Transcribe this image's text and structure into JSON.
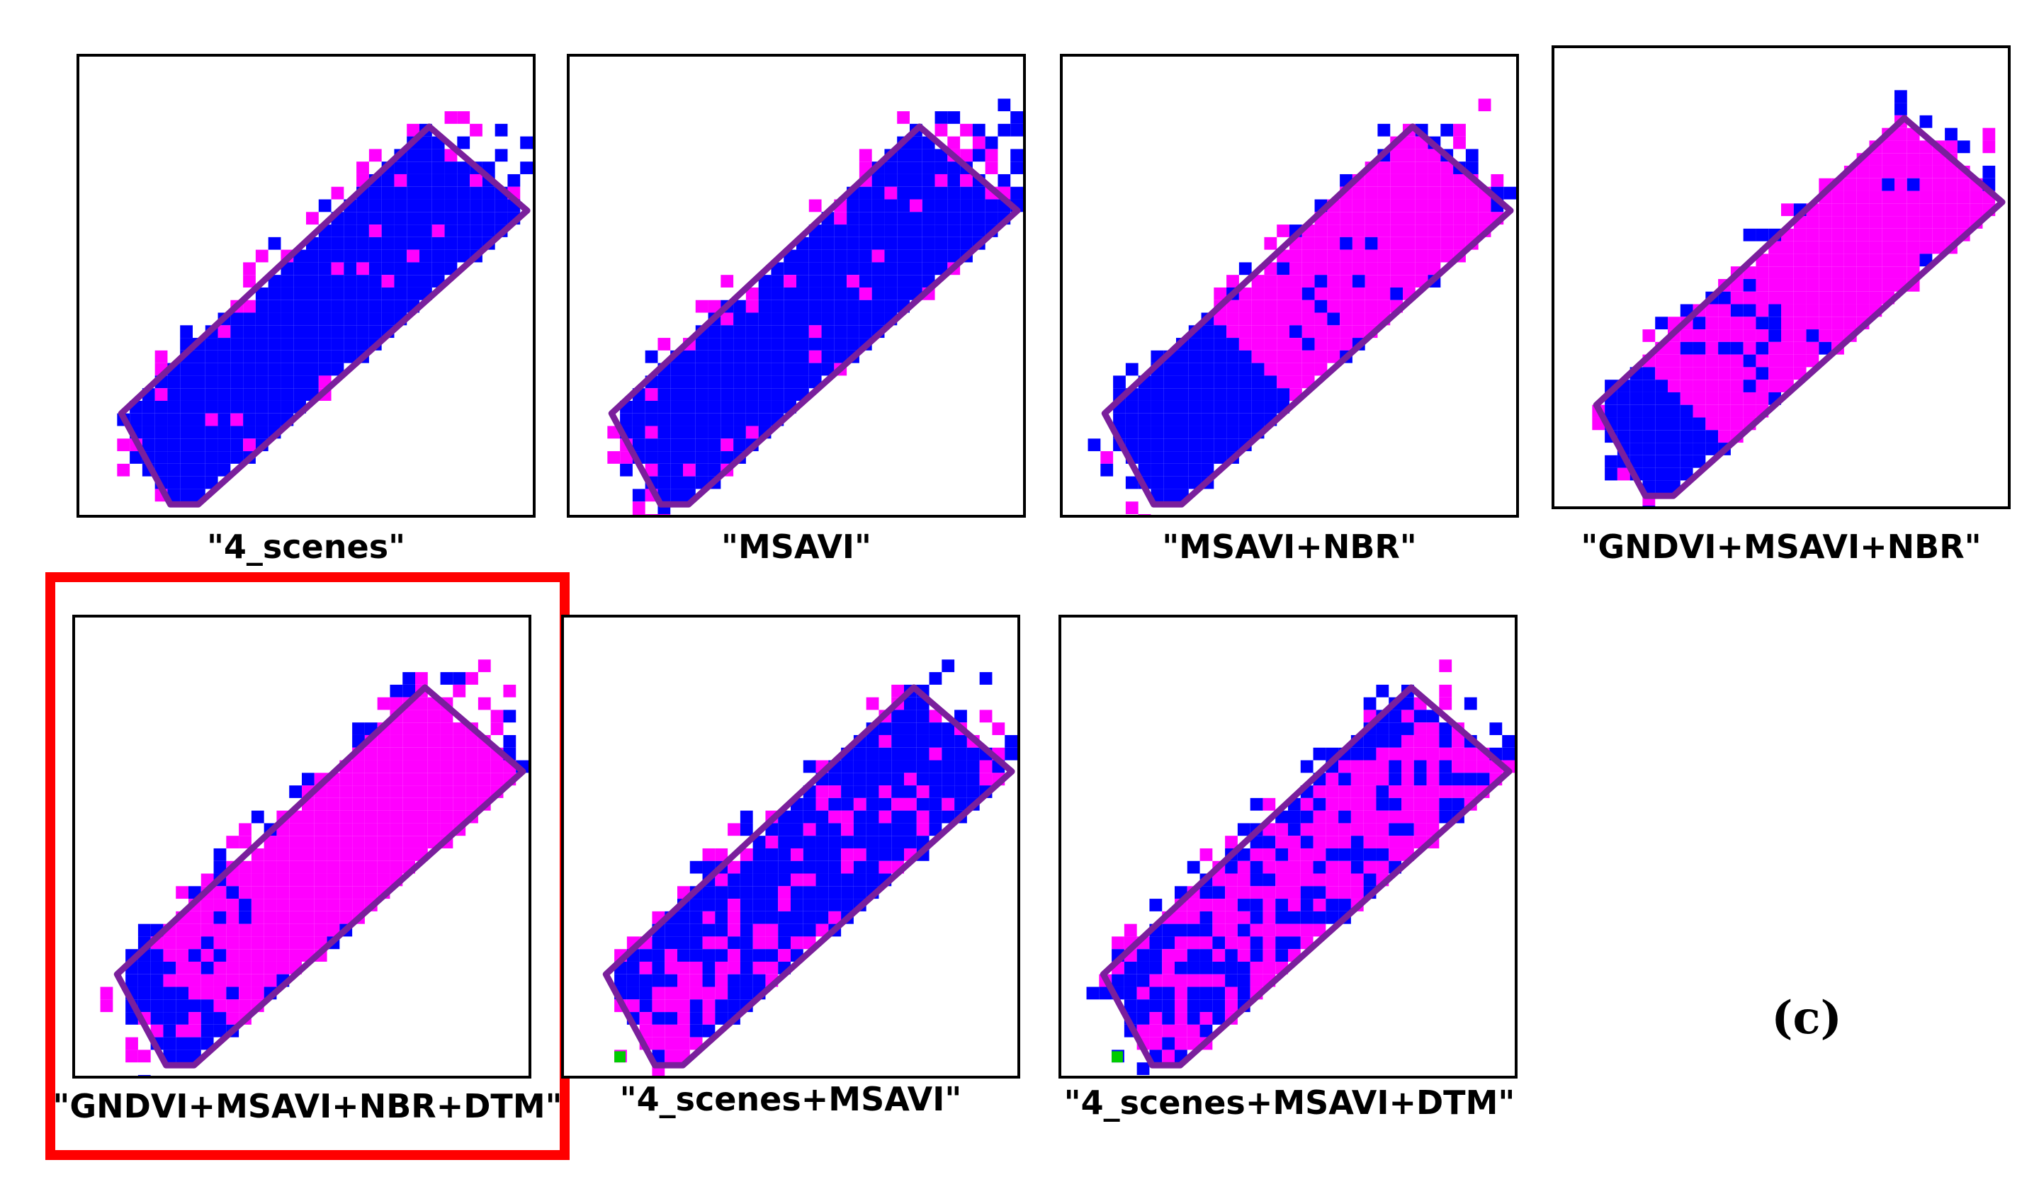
{
  "figure": {
    "panel_letter": "(c)",
    "highlighted_panel": "GNDVI+MSAVI+NBR+DTM",
    "colors": {
      "class_a": "#0000ff",
      "class_b": "#ff00ff",
      "class_c": "#00cc00",
      "boundary": "#7a1f9c",
      "highlight": "#ff0000",
      "frame": "#000000"
    },
    "panels": [
      {
        "label": "\"4_scenes\"",
        "dominant_class": "blue"
      },
      {
        "label": "\"MSAVI\"",
        "dominant_class": "blue"
      },
      {
        "label": "\"MSAVI+NBR\"",
        "dominant_class": "magenta"
      },
      {
        "label": "\"GNDVI+MSAVI+NBR\"",
        "dominant_class": "magenta"
      },
      {
        "label": "\"GNDVI+MSAVI+NBR+DTM\"",
        "dominant_class": "magenta"
      },
      {
        "label": "\"4_scenes+MSAVI\"",
        "dominant_class": "blue"
      },
      {
        "label": "\"4_scenes+MSAVI+DTM\"",
        "dominant_class": "mixed"
      }
    ]
  }
}
